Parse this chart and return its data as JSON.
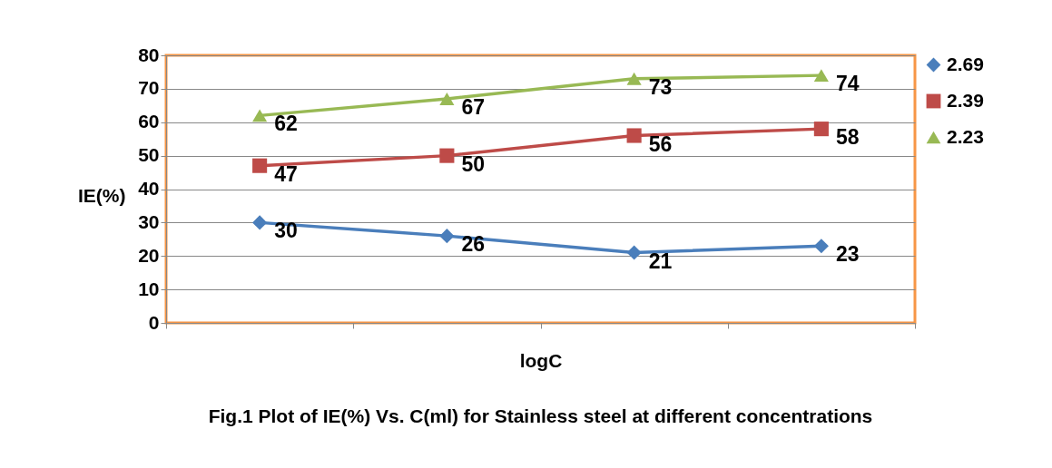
{
  "chart_data": {
    "type": "line",
    "title": "Fig.1 Plot of IE(%) Vs. C(ml) for Stainless steel at different concentrations",
    "xlabel": "logC",
    "ylabel": "IE(%)",
    "categories": [
      null,
      null,
      null,
      null
    ],
    "series": [
      {
        "name": "2.69",
        "color": "#4a7ebb",
        "marker": "diamond",
        "values": [
          30,
          26,
          21,
          23
        ]
      },
      {
        "name": "2.39",
        "color": "#be4b48",
        "marker": "square",
        "values": [
          47,
          50,
          56,
          58
        ]
      },
      {
        "name": "2.23",
        "color": "#98b954",
        "marker": "triangle",
        "values": [
          62,
          67,
          73,
          74
        ]
      }
    ],
    "ylim": [
      0,
      80
    ],
    "yticks": [
      0,
      10,
      20,
      30,
      40,
      50,
      60,
      70,
      80
    ],
    "grid": "y",
    "legend": "right",
    "data_labels": true,
    "tick_labels": "y"
  }
}
